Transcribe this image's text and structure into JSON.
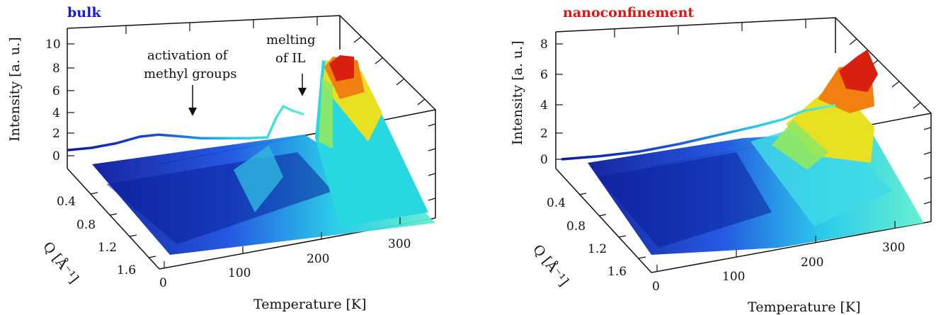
{
  "chart_data": [
    {
      "type": "surface3d",
      "title": "bulk",
      "title_color": "#1a1adc",
      "zlabel": "Intensity [a. u.]",
      "xlabel": "Temperature [K]",
      "ylabel": "Q [Å⁻¹]",
      "x_ticks": [
        "0",
        "100",
        "200",
        "300"
      ],
      "y_ticks": [
        "0.4",
        "0.8",
        "1.2",
        "1.6"
      ],
      "z_ticks": [
        "0",
        "2",
        "4",
        "6",
        "8",
        "10"
      ],
      "x_range": [
        0,
        350
      ],
      "q_range": [
        0.2,
        1.8
      ],
      "z_range": [
        0,
        10
      ],
      "projection_T": [
        [
          0,
          2.0
        ],
        [
          20,
          2.1
        ],
        [
          40,
          2.4
        ],
        [
          60,
          2.9
        ],
        [
          75,
          3.0
        ],
        [
          90,
          2.8
        ],
        [
          110,
          2.5
        ],
        [
          130,
          2.4
        ],
        [
          150,
          2.3
        ],
        [
          165,
          2.3
        ],
        [
          172,
          4.0
        ],
        [
          178,
          5.0
        ],
        [
          185,
          4.6
        ],
        [
          195,
          4.2
        ]
      ],
      "annotations": [
        {
          "text_lines": [
            "activation of",
            "methyl groups"
          ],
          "temperature": 75
        },
        {
          "text_lines": [
            "melting",
            "of IL"
          ],
          "temperature": 175
        }
      ]
    },
    {
      "type": "surface3d",
      "title": "nanoconfinement",
      "title_color": "#e01414",
      "zlabel": "Intensity [a. u.]",
      "xlabel": "Temperature [K]",
      "ylabel": "Q [Å⁻¹]",
      "x_ticks": [
        "0",
        "100",
        "200",
        "300"
      ],
      "y_ticks": [
        "0.4",
        "0.8",
        "1.2",
        "1.6"
      ],
      "z_ticks": [
        "0",
        "2",
        "4",
        "6",
        "8"
      ],
      "x_range": [
        0,
        350
      ],
      "q_range": [
        0.2,
        1.8
      ],
      "z_range": [
        0,
        8
      ],
      "projection_T": [
        [
          0,
          1.5
        ],
        [
          30,
          1.6
        ],
        [
          60,
          1.8
        ],
        [
          90,
          2.2
        ],
        [
          120,
          2.7
        ],
        [
          150,
          3.2
        ],
        [
          170,
          3.6
        ],
        [
          185,
          4.1
        ],
        [
          200,
          4.3
        ],
        [
          210,
          4.4
        ]
      ],
      "annotations": []
    }
  ]
}
